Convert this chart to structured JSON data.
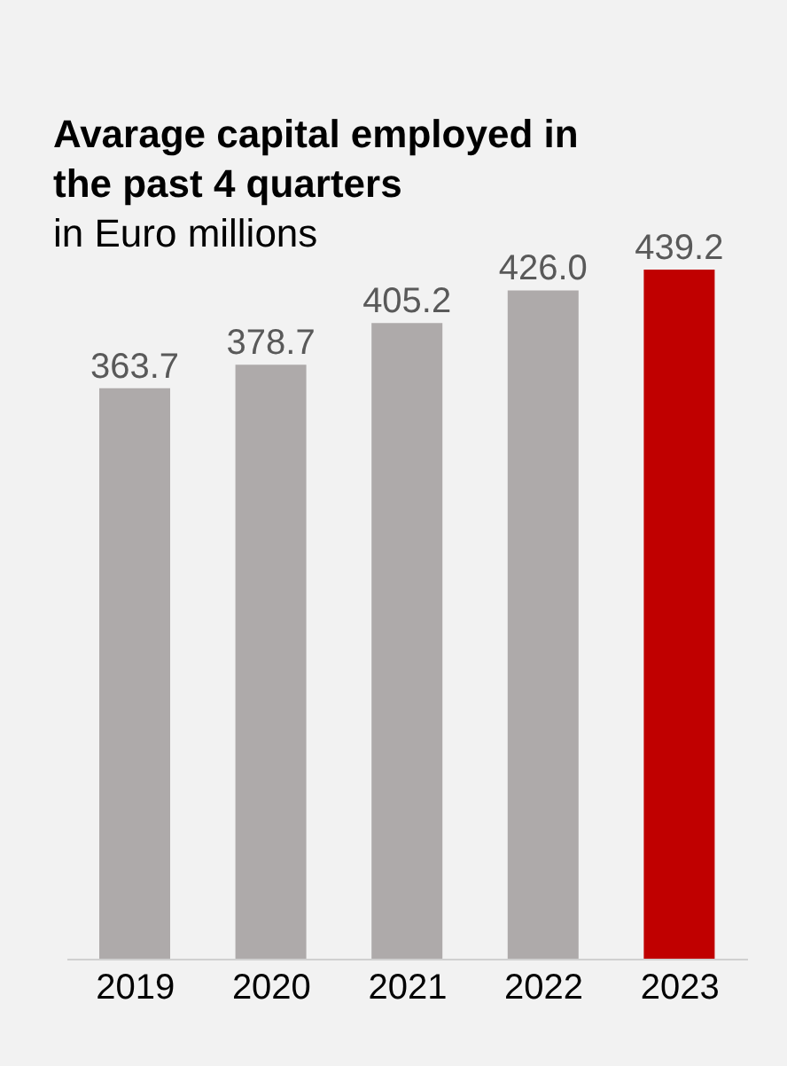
{
  "chart_data": {
    "type": "bar",
    "title": "Avarage capital employed in the past 4 quarters",
    "subtitle": "in Euro millions",
    "categories": [
      "2019",
      "2020",
      "2021",
      "2022",
      "2023"
    ],
    "values": [
      363.7,
      378.7,
      405.2,
      426.0,
      439.2
    ],
    "value_labels": [
      "363.7",
      "378.7",
      "405.2",
      "426.0",
      "439.2"
    ],
    "colors": [
      "#aeaaaa",
      "#aeaaaa",
      "#aeaaaa",
      "#aeaaaa",
      "#c00000"
    ]
  }
}
